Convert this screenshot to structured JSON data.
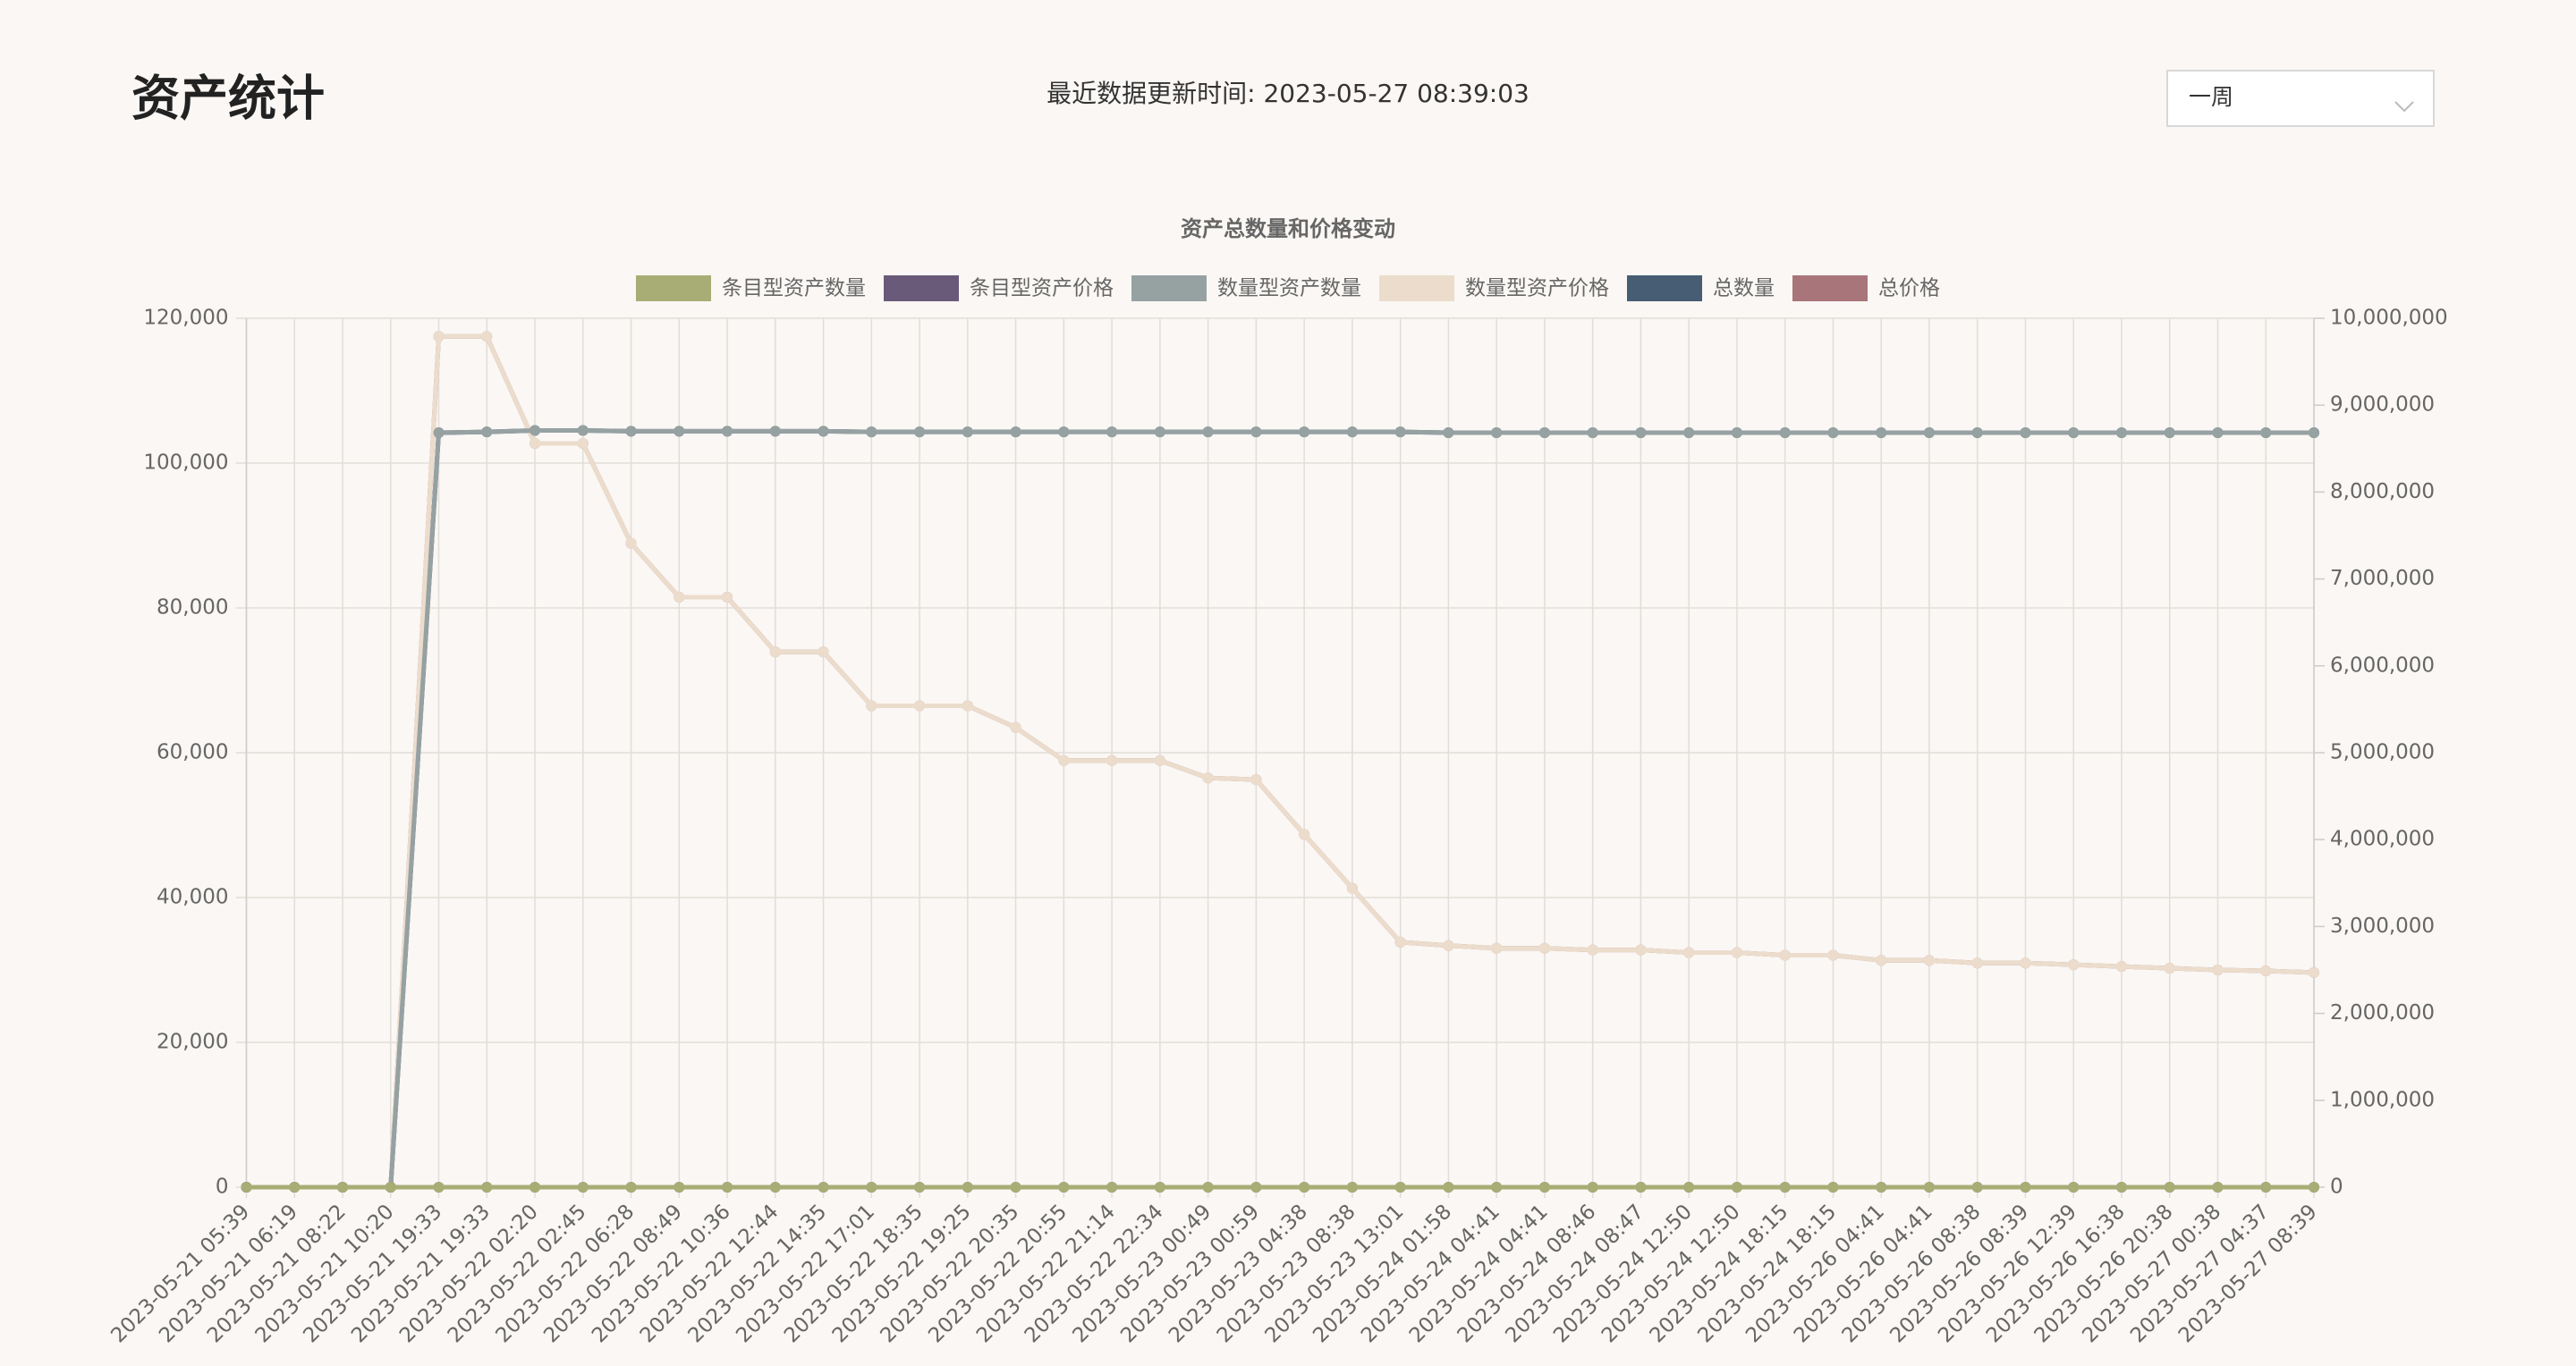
{
  "header": {
    "title": "资产统计",
    "update_time": "最近数据更新时间: 2023-05-27 08:39:03",
    "range_select": "一周"
  },
  "chart_data": {
    "type": "line",
    "title": "资产总数量和价格变动",
    "categories": [
      "2023-05-21 05:39",
      "2023-05-21 06:19",
      "2023-05-21 08:22",
      "2023-05-21 10:20",
      "2023-05-21 19:33",
      "2023-05-21 19:33",
      "2023-05-22 02:20",
      "2023-05-22 02:45",
      "2023-05-22 06:28",
      "2023-05-22 08:49",
      "2023-05-22 10:36",
      "2023-05-22 12:44",
      "2023-05-22 14:35",
      "2023-05-22 17:01",
      "2023-05-22 18:35",
      "2023-05-22 19:25",
      "2023-05-22 20:35",
      "2023-05-22 20:55",
      "2023-05-22 21:14",
      "2023-05-22 22:34",
      "2023-05-23 00:49",
      "2023-05-23 00:59",
      "2023-05-23 04:38",
      "2023-05-23 08:38",
      "2023-05-23 13:01",
      "2023-05-24 01:58",
      "2023-05-24 04:41",
      "2023-05-24 04:41",
      "2023-05-24 08:46",
      "2023-05-24 08:47",
      "2023-05-24 12:50",
      "2023-05-24 12:50",
      "2023-05-24 18:15",
      "2023-05-24 18:15",
      "2023-05-26 04:41",
      "2023-05-26 04:41",
      "2023-05-26 08:38",
      "2023-05-26 08:39",
      "2023-05-26 12:39",
      "2023-05-26 16:38",
      "2023-05-26 20:38",
      "2023-05-27 00:38",
      "2023-05-27 04:37",
      "2023-05-27 08:39"
    ],
    "series": [
      {
        "name": "条目型资产数量",
        "color": "#a8ad76",
        "axis": "y",
        "values": [
          0,
          0,
          0,
          0,
          0,
          0,
          0,
          0,
          0,
          0,
          0,
          0,
          0,
          0,
          0,
          0,
          0,
          0,
          0,
          0,
          0,
          0,
          0,
          0,
          0,
          0,
          0,
          0,
          0,
          0,
          0,
          0,
          0,
          0,
          0,
          0,
          0,
          0,
          0,
          0,
          0,
          0,
          0,
          0
        ]
      },
      {
        "name": "条目型资产价格",
        "color": "#6a5a7a",
        "axis": "y2",
        "values": [
          0,
          0,
          0,
          0,
          0,
          0,
          0,
          0,
          0,
          0,
          0,
          0,
          0,
          0,
          0,
          0,
          0,
          0,
          0,
          0,
          0,
          0,
          0,
          0,
          0,
          0,
          0,
          0,
          0,
          0,
          0,
          0,
          0,
          0,
          0,
          0,
          0,
          0,
          0,
          0,
          0,
          0,
          0,
          0
        ]
      },
      {
        "name": "数量型资产数量",
        "color": "#96a1a2",
        "axis": "y",
        "values": [
          0,
          0,
          0,
          0,
          104200,
          104300,
          104500,
          104500,
          104400,
          104400,
          104400,
          104400,
          104400,
          104300,
          104300,
          104300,
          104300,
          104300,
          104300,
          104300,
          104300,
          104300,
          104300,
          104300,
          104300,
          104200,
          104200,
          104200,
          104200,
          104200,
          104200,
          104200,
          104200,
          104200,
          104200,
          104200,
          104200,
          104200,
          104200,
          104200,
          104200,
          104200,
          104200,
          104200
        ]
      },
      {
        "name": "数量型资产价格",
        "color": "#ecdccc",
        "axis": "y2",
        "values": [
          0,
          0,
          0,
          0,
          9790000,
          9790000,
          8560000,
          8560000,
          7410000,
          6790000,
          6790000,
          6160000,
          6160000,
          5540000,
          5540000,
          5540000,
          5290000,
          4910000,
          4910000,
          4910000,
          4710000,
          4690000,
          4060000,
          3440000,
          2820000,
          2780000,
          2750000,
          2750000,
          2730000,
          2730000,
          2700000,
          2700000,
          2670000,
          2670000,
          2610000,
          2610000,
          2580000,
          2580000,
          2560000,
          2540000,
          2520000,
          2500000,
          2490000,
          2470000
        ]
      },
      {
        "name": "总数量",
        "color": "#465d73",
        "axis": "y",
        "values": [
          0,
          0,
          0,
          0,
          104200,
          104300,
          104500,
          104500,
          104400,
          104400,
          104400,
          104400,
          104400,
          104300,
          104300,
          104300,
          104300,
          104300,
          104300,
          104300,
          104300,
          104300,
          104300,
          104300,
          104300,
          104200,
          104200,
          104200,
          104200,
          104200,
          104200,
          104200,
          104200,
          104200,
          104200,
          104200,
          104200,
          104200,
          104200,
          104200,
          104200,
          104200,
          104200,
          104200
        ]
      },
      {
        "name": "总价格",
        "color": "#a8757a",
        "axis": "y2",
        "values": [
          0,
          0,
          0,
          0,
          9790000,
          9790000,
          8560000,
          8560000,
          7410000,
          6790000,
          6790000,
          6160000,
          6160000,
          5540000,
          5540000,
          5540000,
          5290000,
          4910000,
          4910000,
          4910000,
          4710000,
          4690000,
          4060000,
          3440000,
          2820000,
          2780000,
          2750000,
          2750000,
          2730000,
          2730000,
          2700000,
          2700000,
          2670000,
          2670000,
          2610000,
          2610000,
          2580000,
          2580000,
          2560000,
          2540000,
          2520000,
          2500000,
          2490000,
          2470000
        ]
      }
    ],
    "ylim": [
      0,
      120000
    ],
    "yticks": [
      0,
      {
        "value": 20000,
        "label": "20,000"
      },
      {
        "value": 40000,
        "label": "40,000"
      },
      {
        "value": 60000,
        "label": "60,000"
      },
      {
        "value": 80000,
        "label": "80,000"
      },
      {
        "value": 100000,
        "label": "100,000"
      },
      {
        "value": 120000,
        "label": "120,000"
      }
    ],
    "y2lim": [
      0,
      10000000
    ],
    "y2ticks": [
      0,
      {
        "value": 1000000,
        "label": "1,000,000"
      },
      {
        "value": 2000000,
        "label": "2,000,000"
      },
      {
        "value": 3000000,
        "label": "3,000,000"
      },
      {
        "value": 4000000,
        "label": "4,000,000"
      },
      {
        "value": 5000000,
        "label": "5,000,000"
      },
      {
        "value": 6000000,
        "label": "6,000,000"
      },
      {
        "value": 7000000,
        "label": "7,000,000"
      },
      {
        "value": 8000000,
        "label": "8,000,000"
      },
      {
        "value": 9000000,
        "label": "9,000,000"
      },
      {
        "value": 10000000,
        "label": "10,000,000"
      }
    ],
    "grid": true,
    "legend": "top"
  }
}
